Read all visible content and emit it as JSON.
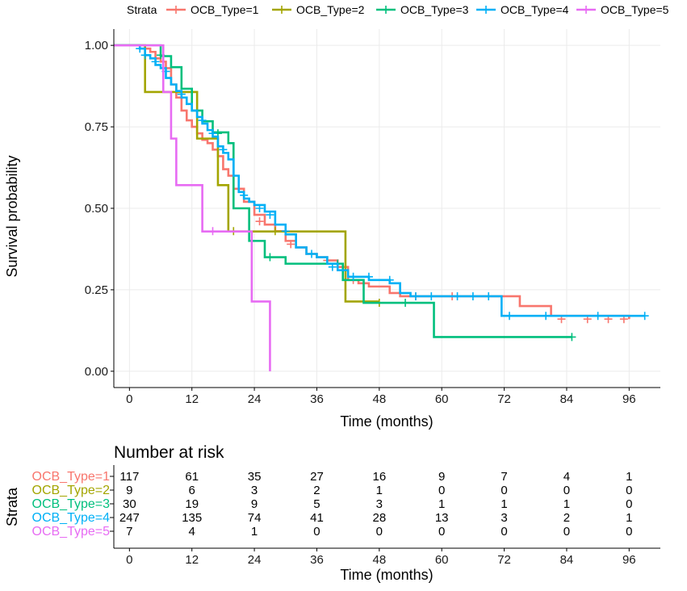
{
  "chart_data": {
    "type": "line",
    "subtype": "kaplan-meier",
    "legend": {
      "title": "Strata",
      "position": "top",
      "items": [
        "OCB_Type=1",
        "OCB_Type=2",
        "OCB_Type=3",
        "OCB_Type=4",
        "OCB_Type=5"
      ]
    },
    "xlabel": "Time (months)",
    "ylabel": "Survival probability",
    "xlim": [
      -3,
      102
    ],
    "ylim": [
      -0.05,
      1.05
    ],
    "xticks": [
      0,
      12,
      24,
      36,
      48,
      60,
      72,
      84,
      96
    ],
    "yticks": [
      0,
      0.25,
      0.5,
      0.75,
      1.0
    ],
    "ytick_labels": [
      "0.00",
      "0.25",
      "0.50",
      "0.75",
      "1.00"
    ],
    "grid": true,
    "series": [
      {
        "name": "OCB_Type=1",
        "color": "#F8766D",
        "steps": [
          [
            -3,
            1.0
          ],
          [
            2,
            1.0
          ],
          [
            3,
            0.99
          ],
          [
            4,
            0.98
          ],
          [
            5,
            0.96
          ],
          [
            6,
            0.95
          ],
          [
            7,
            0.93
          ],
          [
            8,
            0.88
          ],
          [
            9,
            0.84
          ],
          [
            10,
            0.8
          ],
          [
            11,
            0.77
          ],
          [
            12,
            0.75
          ],
          [
            13,
            0.73
          ],
          [
            14,
            0.71
          ],
          [
            15,
            0.7
          ],
          [
            16,
            0.68
          ],
          [
            17,
            0.66
          ],
          [
            18,
            0.62
          ],
          [
            19,
            0.6
          ],
          [
            20,
            0.56
          ],
          [
            22,
            0.52
          ],
          [
            24,
            0.48
          ],
          [
            26,
            0.45
          ],
          [
            28,
            0.43
          ],
          [
            30,
            0.4
          ],
          [
            32,
            0.38
          ],
          [
            34,
            0.36
          ],
          [
            36,
            0.35
          ],
          [
            38,
            0.34
          ],
          [
            40,
            0.32
          ],
          [
            42,
            0.28
          ],
          [
            44,
            0.27
          ],
          [
            46,
            0.26
          ],
          [
            48,
            0.26
          ],
          [
            50,
            0.24
          ],
          [
            52,
            0.23
          ],
          [
            60,
            0.23
          ],
          [
            70,
            0.23
          ],
          [
            75,
            0.2
          ],
          [
            81,
            0.17
          ],
          [
            96,
            0.16
          ]
        ],
        "censors": [
          [
            25,
            0.46
          ],
          [
            31,
            0.39
          ],
          [
            38,
            0.34
          ],
          [
            43,
            0.28
          ],
          [
            55,
            0.23
          ],
          [
            62,
            0.23
          ],
          [
            83,
            0.16
          ],
          [
            88,
            0.16
          ],
          [
            92,
            0.16
          ],
          [
            95,
            0.16
          ]
        ]
      },
      {
        "name": "OCB_Type=2",
        "color": "#A3A500",
        "steps": [
          [
            -3,
            1.0
          ],
          [
            2,
            1.0
          ],
          [
            3,
            0.857
          ],
          [
            12,
            0.857
          ],
          [
            12.5,
            0.857
          ],
          [
            13,
            0.714
          ],
          [
            17,
            0.571
          ],
          [
            19,
            0.429
          ],
          [
            20,
            0.429
          ],
          [
            28,
            0.429
          ],
          [
            41,
            0.429
          ],
          [
            41.5,
            0.214
          ],
          [
            48,
            0.214
          ]
        ],
        "censors": [
          [
            20,
            0.43
          ],
          [
            28,
            0.43
          ],
          [
            48,
            0.21
          ]
        ]
      },
      {
        "name": "OCB_Type=3",
        "color": "#00BF7D",
        "steps": [
          [
            -3,
            1.0
          ],
          [
            5,
            1.0
          ],
          [
            6,
            0.967
          ],
          [
            8,
            0.933
          ],
          [
            10,
            0.867
          ],
          [
            12,
            0.8
          ],
          [
            14,
            0.767
          ],
          [
            16,
            0.733
          ],
          [
            19,
            0.7
          ],
          [
            20,
            0.5
          ],
          [
            23,
            0.4
          ],
          [
            26,
            0.35
          ],
          [
            30,
            0.33
          ],
          [
            38,
            0.33
          ],
          [
            41,
            0.28
          ],
          [
            45,
            0.21
          ],
          [
            58,
            0.21
          ],
          [
            58.5,
            0.105
          ],
          [
            85,
            0.105
          ]
        ],
        "censors": [
          [
            6,
            0.97
          ],
          [
            17,
            0.73
          ],
          [
            27,
            0.35
          ],
          [
            40,
            0.33
          ],
          [
            53,
            0.21
          ],
          [
            85,
            0.105
          ]
        ]
      },
      {
        "name": "OCB_Type=4",
        "color": "#00B0F6",
        "steps": [
          [
            -3,
            1.0
          ],
          [
            1,
            1.0
          ],
          [
            2,
            0.99
          ],
          [
            3,
            0.97
          ],
          [
            4,
            0.96
          ],
          [
            5,
            0.94
          ],
          [
            6,
            0.93
          ],
          [
            7,
            0.9
          ],
          [
            8,
            0.88
          ],
          [
            9,
            0.86
          ],
          [
            10,
            0.84
          ],
          [
            11,
            0.82
          ],
          [
            12,
            0.8
          ],
          [
            13,
            0.78
          ],
          [
            14,
            0.76
          ],
          [
            15,
            0.74
          ],
          [
            16,
            0.72
          ],
          [
            17,
            0.69
          ],
          [
            18,
            0.67
          ],
          [
            19,
            0.65
          ],
          [
            20,
            0.6
          ],
          [
            21,
            0.55
          ],
          [
            22,
            0.53
          ],
          [
            23,
            0.52
          ],
          [
            24,
            0.51
          ],
          [
            26,
            0.49
          ],
          [
            28,
            0.45
          ],
          [
            30,
            0.42
          ],
          [
            32,
            0.38
          ],
          [
            34,
            0.36
          ],
          [
            36,
            0.35
          ],
          [
            38,
            0.33
          ],
          [
            40,
            0.31
          ],
          [
            42,
            0.29
          ],
          [
            44,
            0.29
          ],
          [
            46,
            0.28
          ],
          [
            48,
            0.28
          ],
          [
            50,
            0.27
          ],
          [
            52,
            0.24
          ],
          [
            54,
            0.23
          ],
          [
            60,
            0.23
          ],
          [
            70,
            0.23
          ],
          [
            71.5,
            0.17
          ],
          [
            85,
            0.17
          ],
          [
            99,
            0.17
          ]
        ],
        "censors": [
          [
            2,
            0.99
          ],
          [
            3,
            0.97
          ],
          [
            5,
            0.95
          ],
          [
            7,
            0.92
          ],
          [
            10,
            0.85
          ],
          [
            14,
            0.77
          ],
          [
            16,
            0.73
          ],
          [
            18,
            0.68
          ],
          [
            22,
            0.54
          ],
          [
            25,
            0.5
          ],
          [
            27,
            0.48
          ],
          [
            30,
            0.43
          ],
          [
            35,
            0.36
          ],
          [
            39,
            0.32
          ],
          [
            43,
            0.29
          ],
          [
            46,
            0.29
          ],
          [
            50,
            0.28
          ],
          [
            55,
            0.23
          ],
          [
            58,
            0.23
          ],
          [
            63,
            0.23
          ],
          [
            66,
            0.23
          ],
          [
            69,
            0.23
          ],
          [
            73,
            0.17
          ],
          [
            80,
            0.17
          ],
          [
            90,
            0.17
          ],
          [
            99,
            0.17
          ]
        ]
      },
      {
        "name": "OCB_Type=5",
        "color": "#E76BF3",
        "steps": [
          [
            -3,
            1.0
          ],
          [
            6,
            1.0
          ],
          [
            6.5,
            0.857
          ],
          [
            8,
            0.714
          ],
          [
            9,
            0.571
          ],
          [
            14,
            0.429
          ],
          [
            23.5,
            0.214
          ],
          [
            27,
            0.0
          ]
        ],
        "censors": [
          [
            16,
            0.43
          ]
        ]
      }
    ],
    "risk_table": {
      "title": "Number at risk",
      "ylabel": "Strata",
      "xlabel": "Time (months)",
      "times": [
        0,
        12,
        24,
        36,
        48,
        60,
        72,
        84,
        96
      ],
      "rows": [
        {
          "name": "OCB_Type=1",
          "color": "#F8766D",
          "values": [
            117,
            61,
            35,
            27,
            16,
            9,
            7,
            4,
            1
          ]
        },
        {
          "name": "OCB_Type=2",
          "color": "#A3A500",
          "values": [
            9,
            6,
            3,
            2,
            1,
            0,
            0,
            0,
            0
          ]
        },
        {
          "name": "OCB_Type=3",
          "color": "#00BF7D",
          "values": [
            30,
            19,
            9,
            5,
            3,
            1,
            1,
            1,
            0
          ]
        },
        {
          "name": "OCB_Type=4",
          "color": "#00B0F6",
          "values": [
            247,
            135,
            74,
            41,
            28,
            13,
            3,
            2,
            1
          ]
        },
        {
          "name": "OCB_Type=5",
          "color": "#E76BF3",
          "values": [
            7,
            4,
            1,
            0,
            0,
            0,
            0,
            0,
            0
          ]
        }
      ]
    }
  }
}
